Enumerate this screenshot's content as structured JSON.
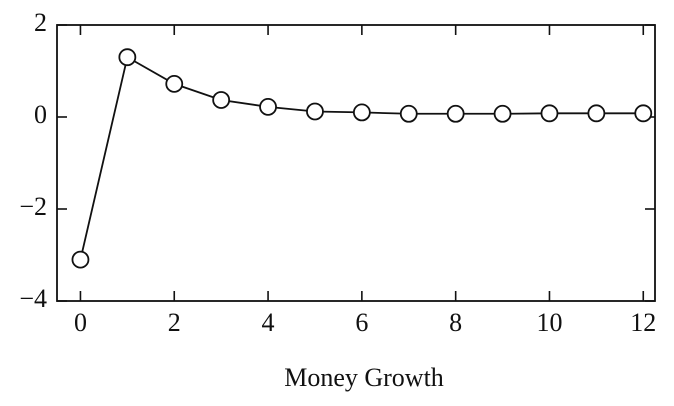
{
  "chart_data": {
    "type": "line",
    "xlabel": "Money Growth",
    "x": [
      0,
      1,
      2,
      3,
      4,
      5,
      6,
      7,
      8,
      9,
      10,
      11,
      12
    ],
    "values": [
      -3.1,
      1.3,
      0.72,
      0.37,
      0.22,
      0.12,
      0.1,
      0.07,
      0.07,
      0.07,
      0.08,
      0.08,
      0.08
    ],
    "color": "#111111",
    "marker": "circle",
    "xlim": [
      -0.5,
      12.25
    ],
    "ylim": [
      -4,
      2
    ],
    "xticks": [
      0,
      2,
      4,
      6,
      8,
      10,
      12
    ],
    "yticks": [
      2,
      0,
      {
        "value": -2,
        "label": "−2"
      },
      {
        "value": -4,
        "label": "−4"
      }
    ],
    "grid": false
  }
}
